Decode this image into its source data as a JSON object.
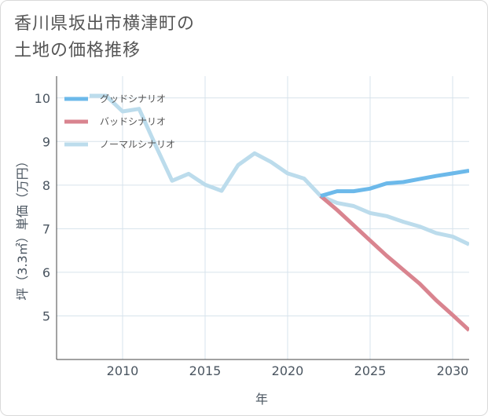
{
  "title_lines": [
    "香川県坂出市横津町の",
    "土地の価格推移"
  ],
  "colors": {
    "good": "#6cb9ea",
    "bad": "#d9848f",
    "normal": "#bcdcec",
    "grid": "#d7e3ec",
    "axis": "#444444"
  },
  "chart_data": {
    "type": "line",
    "title": "香川県坂出市横津町の土地の価格推移",
    "xlabel": "年",
    "ylabel": "坪（3.3㎡）単価（万円）",
    "xlim": [
      2006,
      2031
    ],
    "ylim": [
      4,
      10.5
    ],
    "x_ticks": [
      2010,
      2015,
      2020,
      2025,
      2030
    ],
    "y_ticks": [
      5,
      6,
      7,
      8,
      9,
      10
    ],
    "grid": true,
    "legend_position": "top-left",
    "series": [
      {
        "name": "グッドシナリオ",
        "color_key": "good",
        "points": [
          [
            2022,
            7.75
          ],
          [
            2023,
            7.86
          ],
          [
            2024,
            7.86
          ],
          [
            2025,
            7.92
          ],
          [
            2026,
            8.04
          ],
          [
            2027,
            8.07
          ],
          [
            2028,
            8.14
          ],
          [
            2029,
            8.21
          ],
          [
            2030,
            8.27
          ],
          [
            2031,
            8.33
          ]
        ]
      },
      {
        "name": "バッドシナリオ",
        "color_key": "bad",
        "points": [
          [
            2022,
            7.75
          ],
          [
            2023,
            7.43
          ],
          [
            2024,
            7.08
          ],
          [
            2025,
            6.73
          ],
          [
            2026,
            6.38
          ],
          [
            2027,
            6.06
          ],
          [
            2028,
            5.74
          ],
          [
            2029,
            5.36
          ],
          [
            2030,
            5.02
          ],
          [
            2031,
            4.67
          ]
        ]
      },
      {
        "name": "ノーマルシナリオ",
        "color_key": "normal",
        "points": [
          [
            2008,
            10.05
          ],
          [
            2009,
            10.05
          ],
          [
            2010,
            9.69
          ],
          [
            2011,
            9.75
          ],
          [
            2012,
            8.91
          ],
          [
            2013,
            8.1
          ],
          [
            2014,
            8.26
          ],
          [
            2015,
            8.01
          ],
          [
            2016,
            7.87
          ],
          [
            2017,
            8.46
          ],
          [
            2018,
            8.73
          ],
          [
            2019,
            8.53
          ],
          [
            2020,
            8.27
          ],
          [
            2021,
            8.15
          ],
          [
            2022,
            7.75
          ],
          [
            2023,
            7.59
          ],
          [
            2024,
            7.52
          ],
          [
            2025,
            7.36
          ],
          [
            2026,
            7.29
          ],
          [
            2027,
            7.16
          ],
          [
            2028,
            7.05
          ],
          [
            2029,
            6.9
          ],
          [
            2030,
            6.82
          ],
          [
            2031,
            6.64
          ]
        ]
      }
    ]
  }
}
